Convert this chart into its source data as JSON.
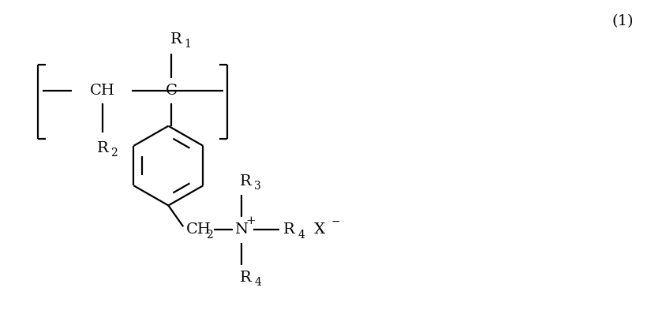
{
  "background_color": "#ffffff",
  "figure_number": "(1)",
  "font_size_labels": 14,
  "font_size_subscript": 10,
  "font_size_superscript": 9,
  "line_color": "#000000",
  "line_width": 1.6,
  "xlim": [
    0,
    10
  ],
  "ylim": [
    0,
    5
  ]
}
